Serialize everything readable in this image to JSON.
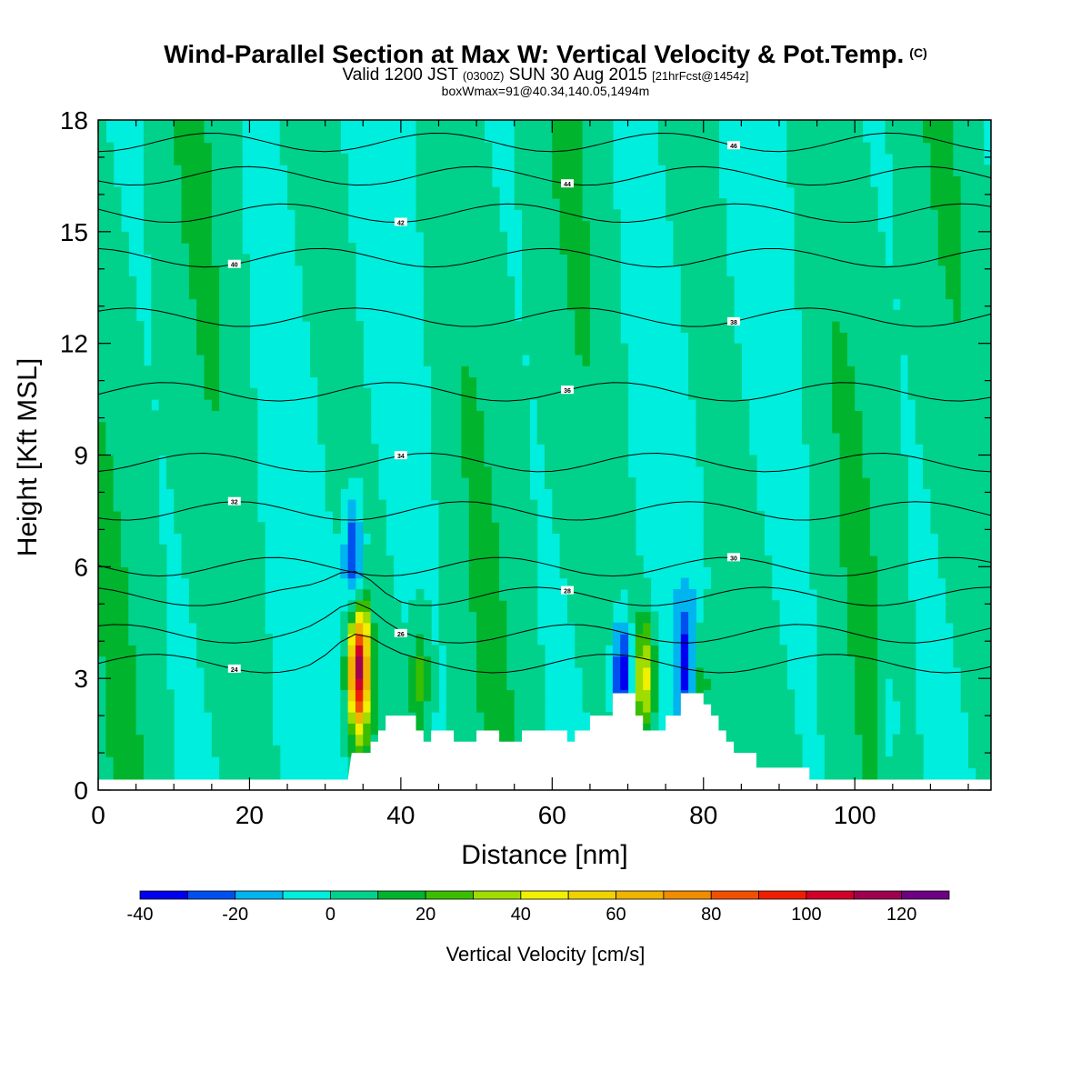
{
  "header": {
    "title": "Wind-Parallel Section at Max W: Vertical Velocity & Pot.Temp.",
    "copyright": "(C)",
    "valid_prefix": "Valid 1200 JST",
    "valid_utc": "(0300Z)",
    "valid_date": "SUN 30 Aug 2015",
    "forecast": "[21hrFcst@1454z]",
    "box_info": "boxWmax=91@40.34,140.05,1494m"
  },
  "colors": {
    "background_field": "#00EEDD",
    "terrain": "#FFFFFF",
    "contour_line": "#000000"
  },
  "chart_data": {
    "type": "heatmap",
    "xlabel": "Distance [nm]",
    "ylabel": "Height [Kft MSL]",
    "xlim": [
      0,
      118
    ],
    "ylim": [
      0,
      18
    ],
    "x_ticks": [
      0,
      20,
      40,
      60,
      80,
      100
    ],
    "y_ticks": [
      0,
      3,
      6,
      9,
      12,
      15,
      18
    ],
    "colorbar": {
      "title": "Vertical Velocity [cm/s]",
      "levels": [
        -40,
        -30,
        -20,
        -10,
        0,
        10,
        20,
        30,
        40,
        50,
        60,
        70,
        80,
        90,
        100,
        110,
        120,
        130
      ],
      "labels": [
        "-40",
        "-20",
        "0",
        "20",
        "40",
        "60",
        "80",
        "100",
        "120"
      ],
      "label_values": [
        -40,
        -20,
        0,
        20,
        40,
        60,
        80,
        100,
        120
      ],
      "colors": [
        "#0000F0",
        "#0050F0",
        "#00B4F0",
        "#00EEDD",
        "#00D28C",
        "#00B42D",
        "#3CBE00",
        "#A0DC00",
        "#F0F000",
        "#F0D200",
        "#F0B400",
        "#F08C00",
        "#F05000",
        "#F01E00",
        "#D20028",
        "#A00050",
        "#6E0082"
      ]
    },
    "terrain_profile": [
      [
        0,
        0.28
      ],
      [
        33,
        0.28
      ],
      [
        33.5,
        1
      ],
      [
        36,
        1
      ],
      [
        36,
        1.3
      ],
      [
        37,
        1.3
      ],
      [
        37,
        1.6
      ],
      [
        38,
        1.6
      ],
      [
        38,
        2
      ],
      [
        42,
        2
      ],
      [
        42,
        1.6
      ],
      [
        43,
        1.6
      ],
      [
        43,
        1.3
      ],
      [
        44,
        1.3
      ],
      [
        44,
        1.6
      ],
      [
        47,
        1.6
      ],
      [
        47,
        1.3
      ],
      [
        50,
        1.3
      ],
      [
        50,
        1.6
      ],
      [
        53,
        1.6
      ],
      [
        53,
        1.3
      ],
      [
        56,
        1.3
      ],
      [
        56,
        1.6
      ],
      [
        62,
        1.6
      ],
      [
        62,
        1.3
      ],
      [
        63,
        1.3
      ],
      [
        63,
        1.6
      ],
      [
        65,
        1.6
      ],
      [
        65,
        2
      ],
      [
        68,
        2
      ],
      [
        68,
        2.6
      ],
      [
        71,
        2.6
      ],
      [
        71,
        2
      ],
      [
        72,
        2
      ],
      [
        72,
        1.6
      ],
      [
        75,
        1.6
      ],
      [
        75,
        2
      ],
      [
        77,
        2
      ],
      [
        77,
        2.6
      ],
      [
        80,
        2.6
      ],
      [
        80,
        2.3
      ],
      [
        81,
        2.3
      ],
      [
        81,
        2
      ],
      [
        82,
        2
      ],
      [
        82,
        1.6
      ],
      [
        83,
        1.6
      ],
      [
        83,
        1.3
      ],
      [
        84,
        1.3
      ],
      [
        84,
        1
      ],
      [
        87,
        1
      ],
      [
        87,
        0.6
      ],
      [
        94,
        0.6
      ],
      [
        94,
        0.28
      ],
      [
        118,
        0.28
      ]
    ],
    "w_features": [
      {
        "x": 34.5,
        "y": 3.2,
        "w": 110
      },
      {
        "x": 33.7,
        "y": 6.2,
        "w": -35
      },
      {
        "x": 69.2,
        "y": 3.1,
        "w": -40
      },
      {
        "x": 72.2,
        "y": 3.1,
        "w": 45
      },
      {
        "x": 77.8,
        "y": 3.4,
        "w": -30
      },
      {
        "x": 79.5,
        "y": 2.7,
        "w": 25
      },
      {
        "x": 42.5,
        "y": 3.0,
        "w": 25
      },
      {
        "x": 104.5,
        "y": 1.8,
        "w": -15
      }
    ],
    "isentropes": [
      {
        "label": "24",
        "y": 3.4
      },
      {
        "label": "26",
        "y": 4.2
      },
      {
        "label": "28",
        "y": 5.2
      },
      {
        "label": "30",
        "y": 6.0
      },
      {
        "label": "32",
        "y": 7.5
      },
      {
        "label": "34",
        "y": 8.8
      },
      {
        "label": "36",
        "y": 10.7
      },
      {
        "label": "38",
        "y": 12.7
      },
      {
        "label": "40",
        "y": 14.3
      },
      {
        "label": "42",
        "y": 15.5
      },
      {
        "label": "44",
        "y": 16.5
      },
      {
        "label": "46",
        "y": 17.4
      }
    ]
  }
}
